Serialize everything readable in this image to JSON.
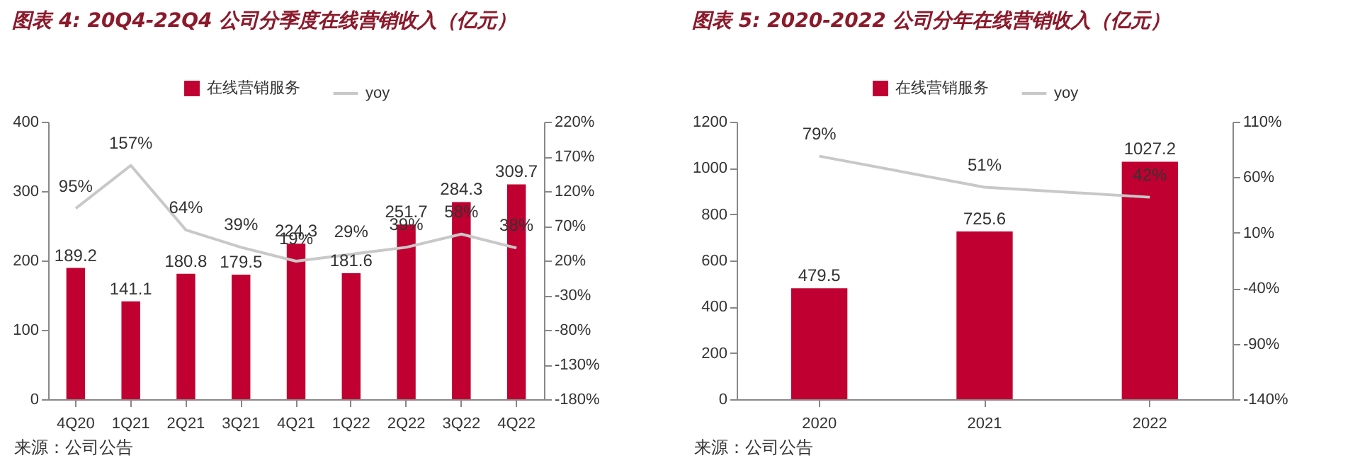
{
  "chart_data": [
    {
      "type": "bar",
      "title": "图表 4: 20Q4-22Q4 公司分季度在线营销收入（亿元）",
      "categories": [
        "4Q20",
        "1Q21",
        "2Q21",
        "3Q21",
        "4Q21",
        "1Q22",
        "2Q22",
        "3Q22",
        "4Q22"
      ],
      "series": [
        {
          "name": "在线营销服务",
          "color": "#c00030",
          "values": [
            189.2,
            141.1,
            180.8,
            179.5,
            224.3,
            181.6,
            251.7,
            284.3,
            309.7
          ],
          "value_labels": [
            "189.2",
            "141.1",
            "180.8",
            "179.5",
            "224.3",
            "181.6",
            "251.7",
            "284.3",
            "309.7"
          ]
        },
        {
          "name": "yoy",
          "type": "line",
          "axis": "y2",
          "color": "#c8c8c8",
          "values": [
            95,
            157,
            64,
            39,
            19,
            29,
            39,
            58,
            38
          ],
          "value_labels": [
            "95%",
            "157%",
            "64%",
            "39%",
            "19%",
            "29%",
            "39%",
            "58%",
            "38%"
          ]
        }
      ],
      "ylim": [
        0,
        400
      ],
      "yticks": [
        0,
        100,
        200,
        300,
        400
      ],
      "y2lim": [
        -180,
        220
      ],
      "y2ticks": [
        {
          "value": -180,
          "label": "-180%"
        },
        {
          "value": -130,
          "label": "-130%"
        },
        {
          "value": -80,
          "label": "-80%"
        },
        {
          "value": -30,
          "label": "-30%"
        },
        {
          "value": 20,
          "label": "20%"
        },
        {
          "value": 70,
          "label": "70%"
        },
        {
          "value": 120,
          "label": "120%"
        },
        {
          "value": 170,
          "label": "170%"
        },
        {
          "value": 220,
          "label": "220%"
        }
      ],
      "legend": "top",
      "annotations": [
        "来源：公司公告"
      ]
    },
    {
      "type": "bar",
      "title": "图表 5: 2020-2022 公司分年在线营销收入（亿元）",
      "categories": [
        "2020",
        "2021",
        "2022"
      ],
      "series": [
        {
          "name": "在线营销服务",
          "color": "#c00030",
          "values": [
            479.5,
            725.6,
            1027.2
          ],
          "value_labels": [
            "479.5",
            "725.6",
            "1027.2"
          ]
        },
        {
          "name": "yoy",
          "type": "line",
          "axis": "y2",
          "color": "#c8c8c8",
          "values": [
            79,
            51,
            42
          ],
          "value_labels": [
            "79%",
            "51%",
            "42%"
          ]
        }
      ],
      "ylim": [
        0,
        1200
      ],
      "yticks": [
        0,
        200,
        400,
        600,
        800,
        1000,
        1200
      ],
      "y2lim": [
        -140,
        110
      ],
      "y2ticks": [
        {
          "value": -140,
          "label": "-140%"
        },
        {
          "value": -90,
          "label": "-90%"
        },
        {
          "value": -40,
          "label": "-40%"
        },
        {
          "value": 10,
          "label": "10%"
        },
        {
          "value": 60,
          "label": "60%"
        },
        {
          "value": 110,
          "label": "110%"
        }
      ],
      "legend": "top",
      "annotations": [
        "来源：公司公告"
      ]
    }
  ]
}
